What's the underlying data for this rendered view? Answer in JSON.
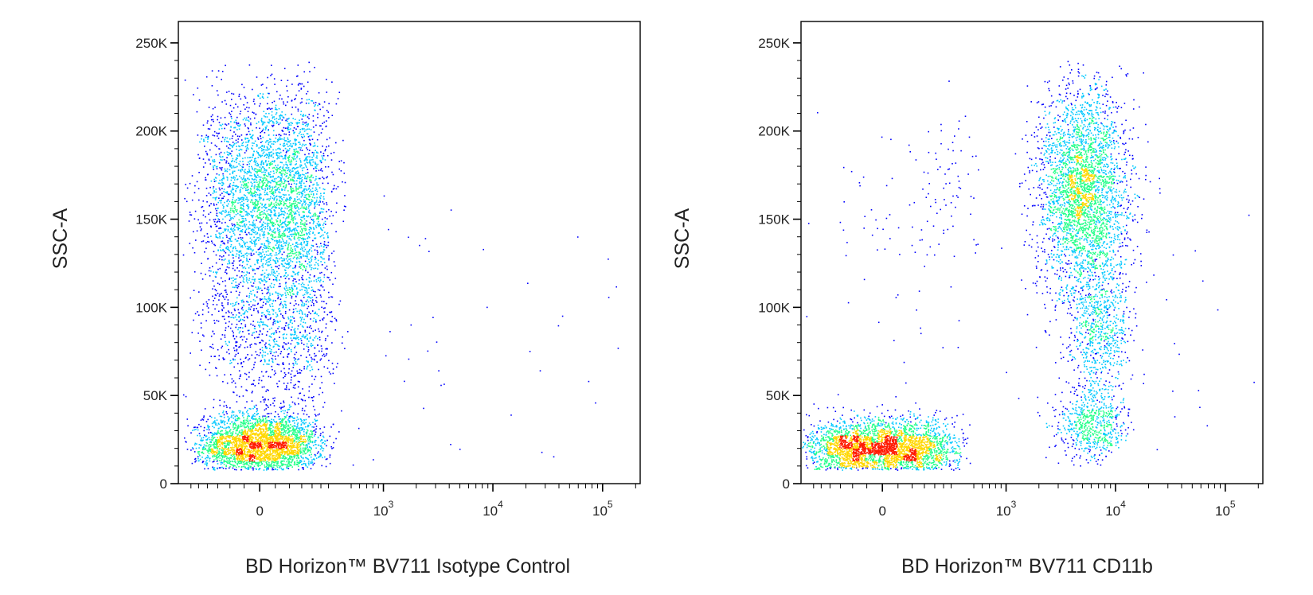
{
  "chart_data": [
    {
      "type": "scatter",
      "subtype": "flow-cytometry-pseudocolor-dot-plot",
      "xlabel": "BD Horizon™ BV711 Isotype Control",
      "ylabel": "SSC-A",
      "x_scale": "biexponential",
      "xlim": [
        -400,
        220000
      ],
      "ylim": [
        0,
        262144
      ],
      "x_ticks": [
        {
          "value": 0,
          "base": "0",
          "exp": ""
        },
        {
          "value": 1000,
          "base": "10",
          "exp": "3"
        },
        {
          "value": 10000,
          "base": "10",
          "exp": "4"
        },
        {
          "value": 100000,
          "base": "10",
          "exp": "5"
        }
      ],
      "y_ticks": [
        {
          "value": 0,
          "label": "0"
        },
        {
          "value": 50000,
          "label": "50K"
        },
        {
          "value": 100000,
          "label": "100K"
        },
        {
          "value": 150000,
          "label": "150K"
        },
        {
          "value": 200000,
          "label": "200K"
        },
        {
          "value": 250000,
          "label": "250K"
        }
      ],
      "populations": [
        {
          "name": "low-SSC negative",
          "x_center": 0,
          "x_spread": 110,
          "y_center": 22000,
          "y_spread": 9000,
          "weight": 3200
        },
        {
          "name": "high-SSC negative",
          "x_center": 40,
          "x_spread": 120,
          "y_center": 160000,
          "y_spread": 32000,
          "weight": 3800
        },
        {
          "name": "mid-SSC negative",
          "x_center": 60,
          "x_spread": 130,
          "y_center": 85000,
          "y_spread": 22000,
          "weight": 900
        },
        {
          "name": "sparse background",
          "x_center": 3000,
          "x_spread": 60000,
          "y_center": 60000,
          "y_spread": 60000,
          "weight": 70
        }
      ]
    },
    {
      "type": "scatter",
      "subtype": "flow-cytometry-pseudocolor-dot-plot",
      "xlabel": "BD Horizon™ BV711 CD11b",
      "ylabel": "SSC-A",
      "x_scale": "biexponential",
      "xlim": [
        -400,
        220000
      ],
      "ylim": [
        0,
        262144
      ],
      "x_ticks": [
        {
          "value": 0,
          "base": "0",
          "exp": ""
        },
        {
          "value": 1000,
          "base": "10",
          "exp": "3"
        },
        {
          "value": 10000,
          "base": "10",
          "exp": "4"
        },
        {
          "value": 100000,
          "base": "10",
          "exp": "5"
        }
      ],
      "y_ticks": [
        {
          "value": 0,
          "label": "0"
        },
        {
          "value": 50000,
          "label": "50K"
        },
        {
          "value": 100000,
          "label": "100K"
        },
        {
          "value": 150000,
          "label": "150K"
        },
        {
          "value": 200000,
          "label": "200K"
        },
        {
          "value": 250000,
          "label": "250K"
        }
      ],
      "populations": [
        {
          "name": "CD11b- low-SSC",
          "x_center": 0,
          "x_spread": 140,
          "y_center": 20000,
          "y_spread": 8000,
          "weight": 3400
        },
        {
          "name": "CD11b+ low-SSC",
          "x_center": 6000,
          "x_spread": 3000,
          "y_center": 33000,
          "y_spread": 10000,
          "weight": 600
        },
        {
          "name": "CD11b+ high-SSC granulocytes",
          "x_center": 5000,
          "x_spread": 3500,
          "y_center": 165000,
          "y_spread": 30000,
          "weight": 3200
        },
        {
          "name": "CD11b+ mid-SSC",
          "x_center": 7000,
          "x_spread": 3000,
          "y_center": 85000,
          "y_spread": 20000,
          "weight": 700
        },
        {
          "name": "CD11b- high-SSC scatter",
          "x_center": 150,
          "x_spread": 200,
          "y_center": 160000,
          "y_spread": 30000,
          "weight": 120
        },
        {
          "name": "sparse background",
          "x_center": 3000,
          "x_spread": 60000,
          "y_center": 60000,
          "y_spread": 60000,
          "weight": 80
        }
      ]
    }
  ],
  "colors": {
    "density_low": "#0000ff",
    "density_mid_low": "#00c8ff",
    "density_mid": "#22ff88",
    "density_mid_high": "#ffd700",
    "density_high": "#ff1a00",
    "axis": "#000000"
  }
}
